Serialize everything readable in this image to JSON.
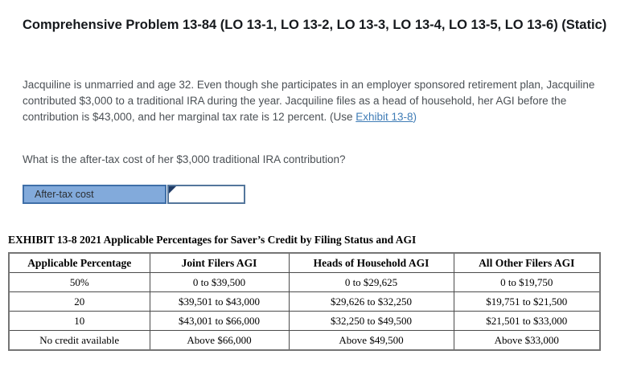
{
  "header": {
    "title": "Comprehensive Problem 13-84 (LO 13-1, LO 13-2, LO 13-3, LO 13-4, LO 13-5, LO 13-6) (Static)"
  },
  "problem": {
    "text_before_link": "Jacquiline is unmarried and age 32. Even though she participates in an employer sponsored retirement plan, Jacquiline contributed $3,000 to a traditional IRA during the year. Jacquiline files as a head of household, her AGI before the contribution is $43,000, and her marginal tax rate is 12 percent. (Use ",
    "link_label": "Exhibit 13-8",
    "text_after_link": ")"
  },
  "question": {
    "text": "What is the after-tax cost of her $3,000 traditional IRA contribution?"
  },
  "answer_row": {
    "label": "After-tax cost",
    "input_value": ""
  },
  "exhibit": {
    "title": "EXHIBIT 13-8 2021 Applicable Percentages for Saver’s Credit by Filing Status and AGI",
    "table": {
      "headers": [
        "Applicable Percentage",
        "Joint Filers AGI",
        "Heads of Household AGI",
        "All Other Filers AGI"
      ],
      "rows": [
        [
          "50%",
          "0 to $39,500",
          "0 to $29,625",
          "0 to $19,750"
        ],
        [
          "20",
          "$39,501 to $43,000",
          "$29,626 to $32,250",
          "$19,751 to $21,500"
        ],
        [
          "10",
          "$43,001 to $66,000",
          "$32,250 to $49,500",
          "$21,501 to $33,000"
        ],
        [
          "No credit available",
          "Above $66,000",
          "Above $49,500",
          "Above $33,000"
        ]
      ]
    }
  },
  "colors": {
    "label_bg": "#82aadb",
    "label_border": "#3f6fa8",
    "input_border": "#54769c",
    "marker_navy": "#1f3b66",
    "link_blue": "#3f7cb6",
    "body_text": "#4b5055",
    "title_color": "#16191d",
    "table_outer": "#757575",
    "table_inner": "#4b4b4b"
  }
}
